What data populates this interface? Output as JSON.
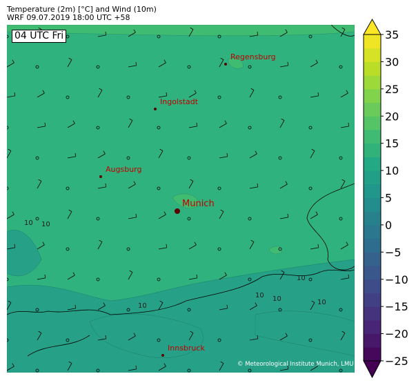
{
  "header": {
    "title": "Temperature (2m) [°C] and Wind (10m)",
    "subtitle": "WRF 09.07.2019 18:00 UTC +58"
  },
  "map": {
    "valid_time_label": "04 UTC Fri",
    "copyright": "© Meteorological Institute Munich, LMU",
    "city_color": "#c00000",
    "cities": [
      {
        "name": "Regensburg",
        "major": false
      },
      {
        "name": "Ingolstadt",
        "major": false
      },
      {
        "name": "Augsburg",
        "major": false
      },
      {
        "name": "Munich",
        "major": true
      },
      {
        "name": "Innsbruck",
        "major": false
      }
    ],
    "contour_labels": [
      "10",
      "10",
      "10",
      "10",
      "10",
      "10",
      "10"
    ]
  },
  "colorbar": {
    "colormap": "viridis",
    "min": -25,
    "max": 35,
    "step": 2.5,
    "extend": "both",
    "tick_labels": [
      "35",
      "30",
      "25",
      "20",
      "15",
      "10",
      "5",
      "0",
      "−5",
      "−10",
      "−15",
      "−20",
      "−25"
    ]
  }
}
